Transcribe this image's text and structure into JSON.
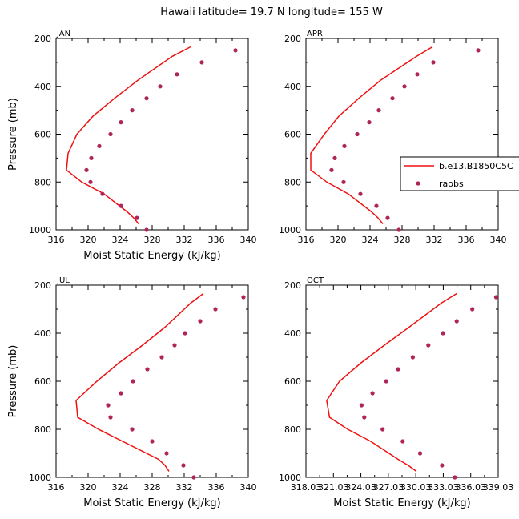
{
  "title": "Hawaii  latitude= 19.7 N longitude= 155 W",
  "colors": {
    "model": "#ee1111",
    "obs": "#b0245c",
    "axis": "#000000"
  },
  "legend": {
    "model_label": "b.e13.B1850C5C",
    "obs_label": "raobs"
  },
  "chart_data": [
    {
      "type": "line",
      "panel": "JAN",
      "xlabel": "Moist Static Energy (kJ/kg)",
      "ylabel": "Pressure (mb)",
      "xlim": [
        316,
        340
      ],
      "ylim": [
        1000,
        200
      ],
      "xticks": [
        "316",
        "320",
        "324",
        "328",
        "332",
        "336",
        "340"
      ],
      "yticks": [
        "200",
        "400",
        "600",
        "800",
        "1000"
      ],
      "model": {
        "p": [
          235,
          275,
          375,
          450,
          525,
          600,
          680,
          750,
          800,
          850,
          925,
          950,
          975
        ],
        "e": [
          332.8,
          330.5,
          326.2,
          323.3,
          320.6,
          318.6,
          317.5,
          317.3,
          319.2,
          322.0,
          324.9,
          325.7,
          326.3
        ]
      },
      "obs": {
        "p": [
          250,
          300,
          350,
          400,
          450,
          500,
          550,
          600,
          650,
          700,
          750,
          800,
          850,
          900,
          950,
          1000
        ],
        "e": [
          338.4,
          334.2,
          331.1,
          329.0,
          327.3,
          325.5,
          324.1,
          322.8,
          321.4,
          320.4,
          319.8,
          320.3,
          321.8,
          324.1,
          326.1,
          327.3
        ]
      }
    },
    {
      "type": "line",
      "panel": "APR",
      "xlabel": "",
      "ylabel": "",
      "xlim": [
        316,
        340
      ],
      "ylim": [
        1000,
        200
      ],
      "xticks": [
        "316",
        "320",
        "324",
        "328",
        "332",
        "336",
        "340"
      ],
      "yticks": [
        "200",
        "400",
        "600",
        "800",
        "1000"
      ],
      "model": {
        "p": [
          235,
          275,
          375,
          450,
          525,
          600,
          680,
          750,
          800,
          850,
          925,
          950,
          975
        ],
        "e": [
          331.8,
          329.8,
          325.3,
          322.6,
          320.1,
          318.3,
          316.6,
          316.6,
          318.6,
          321.3,
          324.2,
          325.0,
          325.6
        ]
      },
      "obs": {
        "p": [
          250,
          300,
          350,
          400,
          450,
          500,
          550,
          600,
          650,
          700,
          750,
          800,
          850,
          900,
          950,
          1000
        ],
        "e": [
          337.5,
          331.9,
          329.9,
          328.3,
          326.8,
          325.1,
          323.9,
          322.4,
          320.8,
          319.6,
          319.2,
          320.7,
          322.8,
          324.8,
          326.2,
          327.6
        ]
      }
    },
    {
      "type": "line",
      "panel": "JUL",
      "xlabel": "Moist Static Energy (kJ/kg)",
      "ylabel": "Pressure (mb)",
      "xlim": [
        316,
        340
      ],
      "ylim": [
        1000,
        200
      ],
      "xticks": [
        "316",
        "320",
        "324",
        "328",
        "332",
        "336",
        "340"
      ],
      "yticks": [
        "200",
        "400",
        "600",
        "800",
        "1000"
      ],
      "model": {
        "p": [
          235,
          275,
          375,
          450,
          525,
          600,
          680,
          750,
          800,
          850,
          925,
          950,
          975
        ],
        "e": [
          334.4,
          332.8,
          329.6,
          326.8,
          323.8,
          321.1,
          318.5,
          318.7,
          321.3,
          324.3,
          328.8,
          329.6,
          330.1
        ]
      },
      "obs": {
        "p": [
          250,
          300,
          350,
          400,
          450,
          500,
          550,
          600,
          650,
          700,
          750,
          800,
          850,
          900,
          950,
          1000
        ],
        "e": [
          339.4,
          335.9,
          334.0,
          332.1,
          330.8,
          329.2,
          327.4,
          325.6,
          324.1,
          322.5,
          322.8,
          325.5,
          328.0,
          329.8,
          331.9,
          333.2
        ]
      }
    },
    {
      "type": "line",
      "panel": "OCT",
      "xlabel": "Moist Static Energy (kJ/kg)",
      "ylabel": "",
      "xlim": [
        318.03,
        339.03
      ],
      "ylim": [
        1000,
        200
      ],
      "xticks": [
        "318.03",
        "321.03",
        "324.03",
        "327.03",
        "330.03",
        "333.03",
        "336.03",
        "339.03"
      ],
      "yticks": [
        "200",
        "400",
        "600",
        "800",
        "1000"
      ],
      "model": {
        "p": [
          235,
          275,
          375,
          450,
          525,
          600,
          680,
          750,
          800,
          850,
          925,
          950,
          975
        ],
        "e": [
          334.5,
          332.8,
          329.3,
          326.6,
          324.0,
          321.7,
          320.3,
          320.6,
          322.6,
          325.1,
          328.1,
          329.2,
          330.1
        ]
      },
      "obs": {
        "p": [
          250,
          300,
          350,
          400,
          450,
          500,
          550,
          600,
          650,
          700,
          750,
          800,
          850,
          900,
          950,
          1000
        ],
        "e": [
          338.8,
          336.2,
          334.5,
          333.0,
          331.4,
          329.7,
          328.1,
          326.8,
          325.3,
          324.1,
          324.4,
          326.4,
          328.6,
          330.5,
          332.9,
          334.3
        ]
      }
    }
  ]
}
